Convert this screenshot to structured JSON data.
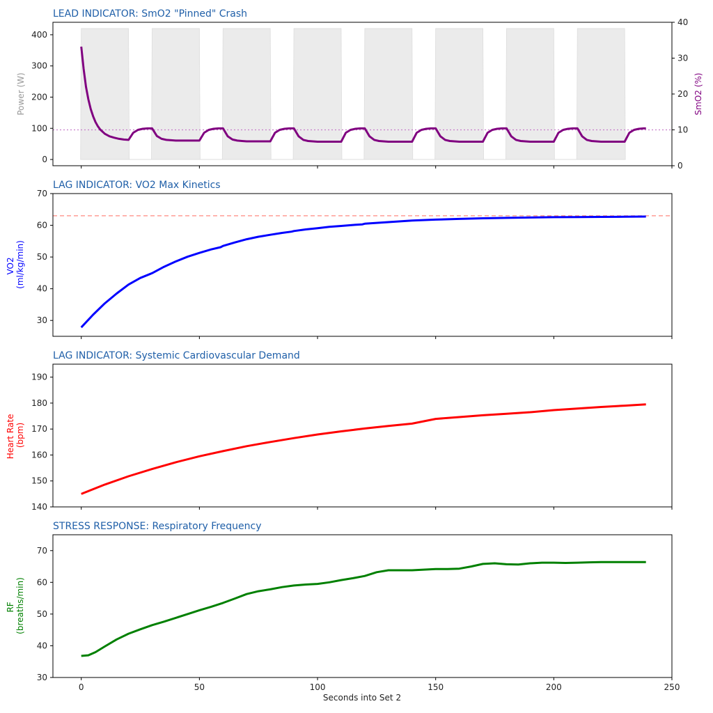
{
  "xlabel": "Seconds into Set 2",
  "x_ticks": [
    0,
    50,
    100,
    150,
    200,
    250
  ],
  "colors": {
    "title": "#1f5fa8",
    "smo2": "#800080",
    "power_fill": "#ebebeb",
    "vo2": "#0000ff",
    "hr": "#ff0000",
    "rf": "#008000",
    "ref_smo2": "#c77dcb",
    "ref_vo2": "#ff8a80"
  },
  "chart_data": [
    {
      "type": "line",
      "title": "LEAD INDICATOR: SmO2 \"Pinned\" Crash",
      "xlim": [
        -12,
        250
      ],
      "grid": false,
      "y_left": {
        "label": "Power (W)",
        "range": [
          -20,
          440
        ],
        "ticks": [
          0,
          100,
          200,
          300,
          400
        ]
      },
      "y_right": {
        "label": "SmO2 (%)",
        "range": [
          0,
          40
        ],
        "ticks": [
          0,
          10,
          20,
          30,
          40
        ]
      },
      "power_work_intervals": [
        [
          0,
          20
        ],
        [
          30,
          50
        ],
        [
          60,
          80
        ],
        [
          90,
          110
        ],
        [
          120,
          140
        ],
        [
          150,
          170
        ],
        [
          180,
          200
        ],
        [
          210,
          230
        ]
      ],
      "power_work_watts": 420,
      "series": [
        {
          "name": "SmO2 (%)",
          "axis": "right",
          "x": [
            0,
            1,
            2,
            3,
            4,
            5,
            6,
            7,
            8,
            10,
            12,
            14,
            16,
            18,
            20,
            22,
            24,
            26,
            28,
            30,
            32,
            34,
            36,
            38,
            40,
            42,
            44,
            46,
            48,
            50,
            52,
            54,
            56,
            58,
            60,
            62,
            64,
            66,
            68,
            70,
            72,
            74,
            76,
            78,
            80,
            82,
            84,
            86,
            88,
            90,
            92,
            94,
            96,
            98,
            100,
            102,
            104,
            106,
            108,
            110,
            112,
            114,
            116,
            118,
            120,
            122,
            124,
            126,
            128,
            130,
            132,
            134,
            136,
            138,
            140,
            142,
            144,
            146,
            148,
            150,
            152,
            154,
            156,
            158,
            160,
            162,
            164,
            166,
            168,
            170,
            172,
            174,
            176,
            178,
            180,
            182,
            184,
            186,
            188,
            190,
            192,
            194,
            196,
            198,
            200,
            202,
            204,
            206,
            208,
            210,
            212,
            214,
            216,
            218,
            220,
            222,
            224,
            226,
            228,
            230,
            232,
            234,
            236,
            238,
            239
          ],
          "y": [
            33.2,
            27.0,
            22.0,
            18.5,
            15.8,
            13.8,
            12.2,
            11.0,
            10.1,
            8.9,
            8.2,
            7.8,
            7.5,
            7.3,
            7.2,
            9.2,
            10.0,
            10.3,
            10.4,
            10.4,
            8.3,
            7.5,
            7.2,
            7.1,
            7.0,
            7.0,
            7.0,
            7.0,
            7.0,
            7.0,
            9.2,
            10.0,
            10.3,
            10.4,
            10.4,
            8.2,
            7.3,
            7.0,
            6.9,
            6.8,
            6.8,
            6.8,
            6.8,
            6.8,
            6.8,
            9.2,
            10.0,
            10.3,
            10.4,
            10.4,
            8.2,
            7.2,
            6.9,
            6.8,
            6.7,
            6.7,
            6.7,
            6.7,
            6.7,
            6.7,
            9.2,
            10.0,
            10.3,
            10.4,
            10.4,
            8.2,
            7.2,
            6.9,
            6.8,
            6.7,
            6.7,
            6.7,
            6.7,
            6.7,
            6.7,
            9.2,
            10.0,
            10.3,
            10.4,
            10.4,
            8.2,
            7.2,
            6.9,
            6.8,
            6.7,
            6.7,
            6.7,
            6.7,
            6.7,
            6.7,
            9.2,
            10.0,
            10.3,
            10.4,
            10.4,
            8.2,
            7.2,
            6.9,
            6.8,
            6.7,
            6.7,
            6.7,
            6.7,
            6.7,
            6.7,
            9.2,
            10.0,
            10.3,
            10.4,
            10.4,
            8.2,
            7.2,
            6.9,
            6.8,
            6.7,
            6.7,
            6.7,
            6.7,
            6.7,
            6.7,
            9.2,
            10.0,
            10.3,
            10.4,
            10.4
          ]
        }
      ],
      "reference_lines": [
        {
          "axis": "right",
          "y": 10,
          "style": "dotted"
        }
      ]
    },
    {
      "type": "line",
      "title": "LAG INDICATOR: VO2 Max Kinetics",
      "xlim": [
        -12,
        250
      ],
      "ylim": [
        25,
        70
      ],
      "yticks": [
        30,
        40,
        50,
        60,
        70
      ],
      "grid": false,
      "ylabel_lines": [
        "VO2",
        "(ml/kg/min)"
      ],
      "series": [
        {
          "name": "VO2",
          "x": [
            0,
            5,
            10,
            15,
            20,
            25,
            29,
            30,
            35,
            40,
            45,
            50,
            55,
            59,
            60,
            65,
            70,
            75,
            80,
            85,
            89,
            90,
            95,
            100,
            105,
            110,
            115,
            119,
            120,
            130,
            140,
            150,
            160,
            170,
            180,
            190,
            200,
            210,
            220,
            230,
            239
          ],
          "y": [
            27.8,
            31.8,
            35.4,
            38.5,
            41.3,
            43.4,
            44.6,
            44.9,
            46.9,
            48.6,
            50.1,
            51.3,
            52.4,
            53.1,
            53.5,
            54.6,
            55.6,
            56.4,
            57.0,
            57.6,
            58.0,
            58.2,
            58.7,
            59.1,
            59.5,
            59.8,
            60.1,
            60.3,
            60.5,
            61.0,
            61.5,
            61.8,
            62.0,
            62.2,
            62.35,
            62.45,
            62.55,
            62.6,
            62.65,
            62.7,
            62.75
          ]
        }
      ],
      "reference_lines": [
        {
          "y": 63,
          "style": "dashed"
        }
      ]
    },
    {
      "type": "line",
      "title": "LAG INDICATOR: Systemic Cardiovascular Demand",
      "xlim": [
        -12,
        250
      ],
      "ylim": [
        140,
        195
      ],
      "yticks": [
        140,
        150,
        160,
        170,
        180,
        190
      ],
      "grid": false,
      "ylabel_lines": [
        "Heart Rate",
        "(bpm)"
      ],
      "series": [
        {
          "name": "Heart Rate",
          "x": [
            0,
            10,
            20,
            30,
            40,
            50,
            60,
            70,
            80,
            90,
            100,
            110,
            120,
            130,
            140,
            150,
            160,
            170,
            180,
            190,
            200,
            210,
            220,
            230,
            239
          ],
          "y": [
            145.0,
            148.6,
            151.8,
            154.6,
            157.2,
            159.5,
            161.5,
            163.4,
            165.0,
            166.5,
            167.9,
            169.1,
            170.2,
            171.2,
            172.1,
            173.9,
            174.6,
            175.3,
            175.9,
            176.5,
            177.3,
            177.9,
            178.5,
            179.0,
            179.5
          ]
        }
      ]
    },
    {
      "type": "line",
      "title": "STRESS RESPONSE: Respiratory Frequency",
      "xlim": [
        -12,
        250
      ],
      "ylim": [
        30,
        75
      ],
      "yticks": [
        30,
        40,
        50,
        60,
        70
      ],
      "grid": false,
      "ylabel_lines": [
        "RF",
        "(breaths/min)"
      ],
      "series": [
        {
          "name": "RF",
          "x": [
            0,
            3,
            6,
            10,
            15,
            20,
            25,
            30,
            35,
            40,
            45,
            50,
            55,
            60,
            65,
            70,
            75,
            80,
            85,
            90,
            95,
            100,
            105,
            110,
            115,
            120,
            125,
            130,
            135,
            140,
            145,
            150,
            155,
            160,
            165,
            170,
            175,
            180,
            185,
            190,
            195,
            200,
            205,
            210,
            215,
            220,
            225,
            230,
            235,
            239
          ],
          "y": [
            36.8,
            37.0,
            38.0,
            39.8,
            42.0,
            43.8,
            45.2,
            46.5,
            47.6,
            48.8,
            50.0,
            51.2,
            52.3,
            53.5,
            54.9,
            56.3,
            57.2,
            57.8,
            58.5,
            59.0,
            59.3,
            59.5,
            60.0,
            60.7,
            61.3,
            62.0,
            63.2,
            63.8,
            63.8,
            63.8,
            64.0,
            64.2,
            64.2,
            64.3,
            65.0,
            65.8,
            66.0,
            65.7,
            65.6,
            66.0,
            66.2,
            66.2,
            66.1,
            66.2,
            66.3,
            66.4,
            66.4,
            66.4,
            66.4,
            66.4
          ]
        }
      ]
    }
  ]
}
